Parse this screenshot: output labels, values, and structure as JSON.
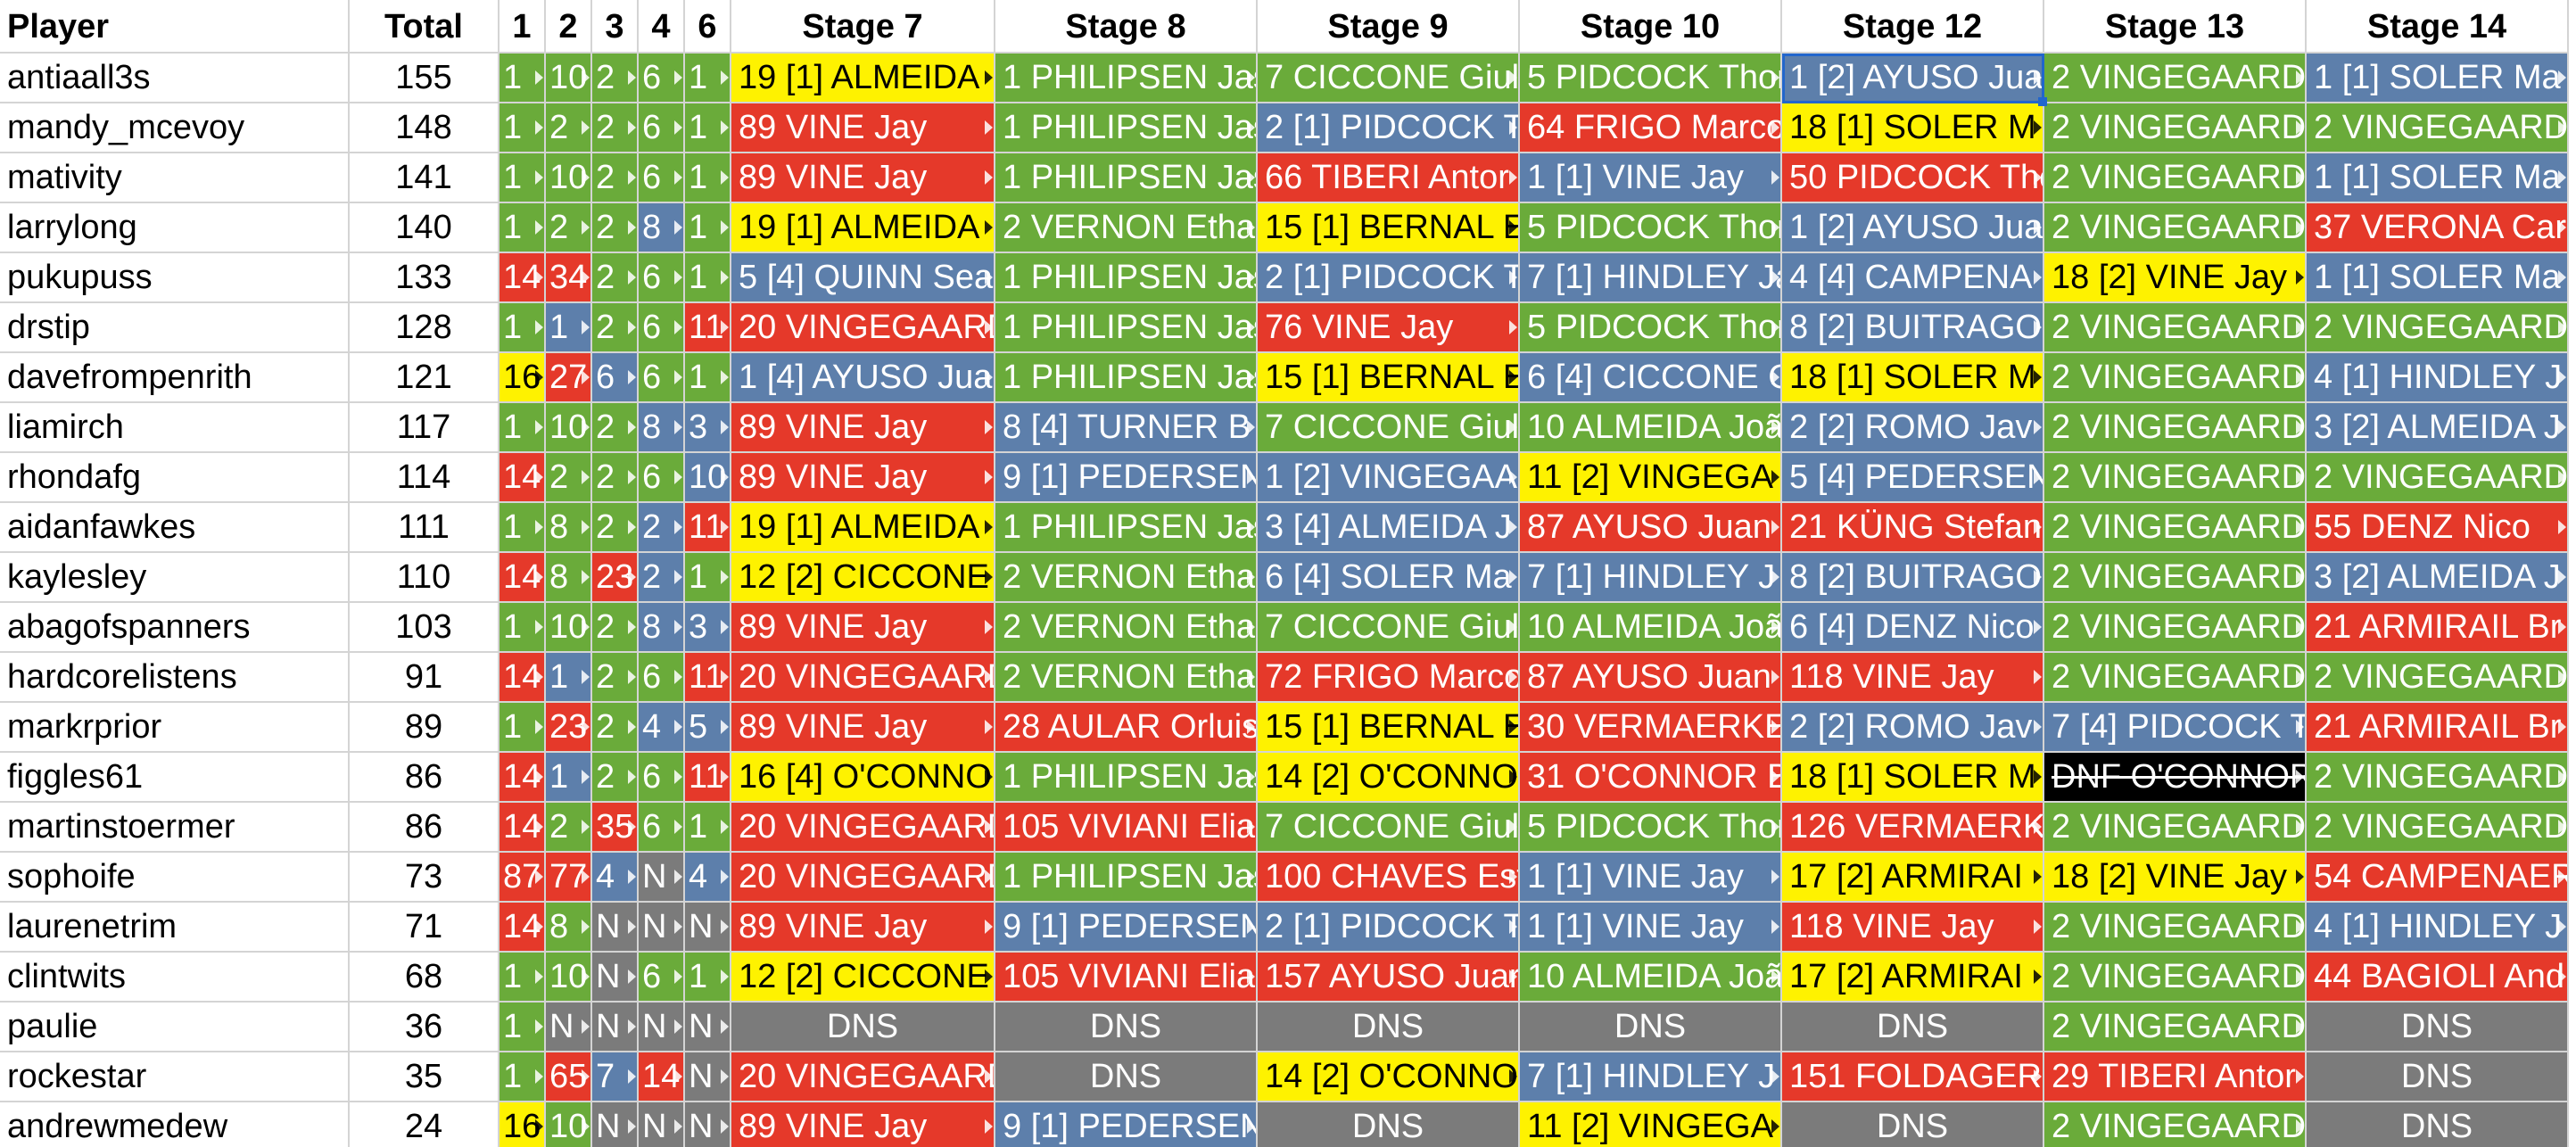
{
  "headers": [
    "Player",
    "Total",
    "1",
    "2",
    "3",
    "4",
    "6",
    "Stage 7",
    "Stage 8",
    "Stage 9",
    "Stage 10",
    "Stage 12",
    "Stage 13",
    "Stage 14"
  ],
  "colors": {
    "G": "#6aab3a",
    "R": "#e5392a",
    "B": "#5d7fab",
    "Y": "#fef200",
    "D": "#7b7b7b",
    "K": "#000000"
  },
  "selected_cell": {
    "row": 0,
    "column": "Stage 12"
  },
  "rows": [
    {
      "player": "antiaall3s",
      "total": "155",
      "cells": [
        [
          "G",
          "1"
        ],
        [
          "G",
          "10"
        ],
        [
          "G",
          "2"
        ],
        [
          "G",
          "6"
        ],
        [
          "G",
          "1"
        ],
        [
          "Y",
          "19 [1] ALMEIDA"
        ],
        [
          "G",
          "1 PHILIPSEN Jas"
        ],
        [
          "G",
          "7 CICCONE Giuli"
        ],
        [
          "G",
          "5 PIDCOCK Thor"
        ],
        [
          "B",
          "1 [2] AYUSO Jua"
        ],
        [
          "G",
          "2 VINGEGAARD"
        ],
        [
          "B",
          "1 [1] SOLER Ma"
        ]
      ]
    },
    {
      "player": "mandy_mcevoy",
      "total": "148",
      "cells": [
        [
          "G",
          "1"
        ],
        [
          "G",
          "2"
        ],
        [
          "G",
          "2"
        ],
        [
          "G",
          "6"
        ],
        [
          "G",
          "1"
        ],
        [
          "R",
          "89 VINE Jay"
        ],
        [
          "G",
          "1 PHILIPSEN Jas"
        ],
        [
          "B",
          "2 [1] PIDCOCK T"
        ],
        [
          "R",
          "64 FRIGO Marco"
        ],
        [
          "Y",
          "18 [1] SOLER M"
        ],
        [
          "G",
          "2 VINGEGAARD"
        ],
        [
          "G",
          "2 VINGEGAARD"
        ]
      ]
    },
    {
      "player": "mativity",
      "total": "141",
      "cells": [
        [
          "G",
          "1"
        ],
        [
          "G",
          "10"
        ],
        [
          "G",
          "2"
        ],
        [
          "G",
          "6"
        ],
        [
          "G",
          "1"
        ],
        [
          "R",
          "89 VINE Jay"
        ],
        [
          "G",
          "1 PHILIPSEN Jas"
        ],
        [
          "R",
          "66 TIBERI Antor"
        ],
        [
          "B",
          "1 [1] VINE Jay"
        ],
        [
          "R",
          "50 PIDCOCK Tho"
        ],
        [
          "G",
          "2 VINGEGAARD"
        ],
        [
          "B",
          "1 [1] SOLER Ma"
        ]
      ]
    },
    {
      "player": "larrylong",
      "total": "140",
      "cells": [
        [
          "G",
          "1"
        ],
        [
          "G",
          "2"
        ],
        [
          "G",
          "2"
        ],
        [
          "B",
          "8"
        ],
        [
          "G",
          "1"
        ],
        [
          "Y",
          "19 [1] ALMEIDA"
        ],
        [
          "G",
          "2 VERNON Etha"
        ],
        [
          "Y",
          "15 [1] BERNAL E"
        ],
        [
          "G",
          "5 PIDCOCK Thor"
        ],
        [
          "B",
          "1 [2] AYUSO Jua"
        ],
        [
          "G",
          "2 VINGEGAARD"
        ],
        [
          "R",
          "37 VERONA Car"
        ]
      ]
    },
    {
      "player": "pukupuss",
      "total": "133",
      "cells": [
        [
          "R",
          "14"
        ],
        [
          "R",
          "34"
        ],
        [
          "G",
          "2"
        ],
        [
          "G",
          "6"
        ],
        [
          "G",
          "1"
        ],
        [
          "B",
          "5 [4] QUINN Sea"
        ],
        [
          "G",
          "1 PHILIPSEN Jas"
        ],
        [
          "B",
          "2 [1] PIDCOCK T"
        ],
        [
          "B",
          "7 [1] HINDLEY Ja"
        ],
        [
          "B",
          "4 [4] CAMPENA"
        ],
        [
          "Y",
          "18 [2] VINE Jay"
        ],
        [
          "B",
          "1 [1] SOLER Ma"
        ]
      ]
    },
    {
      "player": "drstip",
      "total": "128",
      "cells": [
        [
          "G",
          "1"
        ],
        [
          "B",
          "1"
        ],
        [
          "G",
          "2"
        ],
        [
          "G",
          "6"
        ],
        [
          "R",
          "11"
        ],
        [
          "R",
          "20 VINGEGAARD"
        ],
        [
          "G",
          "1 PHILIPSEN Jas"
        ],
        [
          "R",
          "76 VINE Jay"
        ],
        [
          "G",
          "5 PIDCOCK Thor"
        ],
        [
          "B",
          "8 [2] BUITRAGO"
        ],
        [
          "G",
          "2 VINGEGAARD"
        ],
        [
          "G",
          "2 VINGEGAARD"
        ]
      ]
    },
    {
      "player": "davefrompenrith",
      "total": "121",
      "cells": [
        [
          "Y",
          "16"
        ],
        [
          "R",
          "27"
        ],
        [
          "B",
          "6"
        ],
        [
          "G",
          "6"
        ],
        [
          "G",
          "1"
        ],
        [
          "B",
          "1 [4] AYUSO Jua"
        ],
        [
          "G",
          "1 PHILIPSEN Jas"
        ],
        [
          "Y",
          "15 [1] BERNAL E"
        ],
        [
          "B",
          "6 [4] CICCONE G"
        ],
        [
          "Y",
          "18 [1] SOLER M"
        ],
        [
          "G",
          "2 VINGEGAARD"
        ],
        [
          "B",
          "4 [1] HINDLEY J"
        ]
      ]
    },
    {
      "player": "liamirch",
      "total": "117",
      "cells": [
        [
          "G",
          "1"
        ],
        [
          "G",
          "10"
        ],
        [
          "G",
          "2"
        ],
        [
          "B",
          "8"
        ],
        [
          "B",
          "3"
        ],
        [
          "R",
          "89 VINE Jay"
        ],
        [
          "B",
          "8 [4] TURNER B"
        ],
        [
          "G",
          "7 CICCONE Giuli"
        ],
        [
          "G",
          "10 ALMEIDA Joã"
        ],
        [
          "B",
          "2 [2] ROMO Jav"
        ],
        [
          "G",
          "2 VINGEGAARD"
        ],
        [
          "B",
          "3 [2] ALMEIDA J"
        ]
      ]
    },
    {
      "player": "rhondafg",
      "total": "114",
      "cells": [
        [
          "R",
          "14"
        ],
        [
          "G",
          "2"
        ],
        [
          "G",
          "2"
        ],
        [
          "G",
          "6"
        ],
        [
          "B",
          "10"
        ],
        [
          "R",
          "89 VINE Jay"
        ],
        [
          "B",
          "9 [1] PEDERSEN"
        ],
        [
          "B",
          "1 [2] VINGEGAA"
        ],
        [
          "Y",
          "11 [2] VINGEGA"
        ],
        [
          "B",
          "5 [4] PEDERSEN"
        ],
        [
          "G",
          "2 VINGEGAARD"
        ],
        [
          "G",
          "2 VINGEGAARD"
        ]
      ]
    },
    {
      "player": "aidanfawkes",
      "total": "111",
      "cells": [
        [
          "G",
          "1"
        ],
        [
          "G",
          "8"
        ],
        [
          "G",
          "2"
        ],
        [
          "B",
          "2"
        ],
        [
          "R",
          "11"
        ],
        [
          "Y",
          "19 [1] ALMEIDA"
        ],
        [
          "G",
          "1 PHILIPSEN Jas"
        ],
        [
          "B",
          "3 [4] ALMEIDA J"
        ],
        [
          "R",
          "87 AYUSO Juan"
        ],
        [
          "R",
          "21 KÜNG Stefan"
        ],
        [
          "G",
          "2 VINGEGAARD"
        ],
        [
          "R",
          "55 DENZ Nico"
        ]
      ]
    },
    {
      "player": "kaylesley",
      "total": "110",
      "cells": [
        [
          "R",
          "14"
        ],
        [
          "G",
          "8"
        ],
        [
          "R",
          "23"
        ],
        [
          "B",
          "2"
        ],
        [
          "G",
          "1"
        ],
        [
          "Y",
          "12 [2] CICCONE"
        ],
        [
          "G",
          "2 VERNON Etha"
        ],
        [
          "B",
          "6 [4] SOLER Ma"
        ],
        [
          "B",
          "7 [1] HINDLEY J"
        ],
        [
          "B",
          "8 [2] BUITRAGO"
        ],
        [
          "G",
          "2 VINGEGAARD"
        ],
        [
          "B",
          "3 [2] ALMEIDA J"
        ]
      ]
    },
    {
      "player": "abagofspanners",
      "total": "103",
      "cells": [
        [
          "G",
          "1"
        ],
        [
          "G",
          "10"
        ],
        [
          "G",
          "2"
        ],
        [
          "B",
          "8"
        ],
        [
          "B",
          "3"
        ],
        [
          "R",
          "89 VINE Jay"
        ],
        [
          "G",
          "2 VERNON Etha"
        ],
        [
          "G",
          "7 CICCONE Giuli"
        ],
        [
          "G",
          "10 ALMEIDA Joã"
        ],
        [
          "B",
          "6 [4] DENZ Nico"
        ],
        [
          "G",
          "2 VINGEGAARD"
        ],
        [
          "R",
          "21 ARMIRAIL Br"
        ]
      ]
    },
    {
      "player": "hardcorelistens",
      "total": "91",
      "cells": [
        [
          "R",
          "14"
        ],
        [
          "B",
          "1"
        ],
        [
          "G",
          "2"
        ],
        [
          "G",
          "6"
        ],
        [
          "R",
          "11"
        ],
        [
          "R",
          "20 VINGEGAARD"
        ],
        [
          "G",
          "2 VERNON Etha"
        ],
        [
          "R",
          "72 FRIGO Marco"
        ],
        [
          "R",
          "87 AYUSO Juan"
        ],
        [
          "R",
          "118 VINE Jay"
        ],
        [
          "G",
          "2 VINGEGAARD"
        ],
        [
          "G",
          "2 VINGEGAARD"
        ]
      ]
    },
    {
      "player": "markrprior",
      "total": "89",
      "cells": [
        [
          "G",
          "1"
        ],
        [
          "R",
          "23"
        ],
        [
          "G",
          "2"
        ],
        [
          "B",
          "4"
        ],
        [
          "B",
          "5"
        ],
        [
          "R",
          "89 VINE Jay"
        ],
        [
          "R",
          "28 AULAR Orluis"
        ],
        [
          "Y",
          "15 [1] BERNAL E"
        ],
        [
          "R",
          "30 VERMAERKE"
        ],
        [
          "B",
          "2 [2] ROMO Jav"
        ],
        [
          "B",
          "7 [4] PIDCOCK T"
        ],
        [
          "R",
          "21 ARMIRAIL Br"
        ]
      ]
    },
    {
      "player": "figgles61",
      "total": "86",
      "cells": [
        [
          "R",
          "14"
        ],
        [
          "B",
          "1"
        ],
        [
          "G",
          "2"
        ],
        [
          "G",
          "6"
        ],
        [
          "R",
          "11"
        ],
        [
          "Y",
          "16 [4] O'CONNO"
        ],
        [
          "G",
          "1 PHILIPSEN Jas"
        ],
        [
          "Y",
          "14 [2] O'CONNO"
        ],
        [
          "R",
          "31 O'CONNOR B"
        ],
        [
          "Y",
          "18 [1] SOLER M"
        ],
        [
          "K",
          "DNF O'CONNOR"
        ],
        [
          "G",
          "2 VINGEGAARD"
        ]
      ]
    },
    {
      "player": "martinstoermer",
      "total": "86",
      "cells": [
        [
          "R",
          "14"
        ],
        [
          "G",
          "2"
        ],
        [
          "R",
          "35"
        ],
        [
          "G",
          "6"
        ],
        [
          "G",
          "1"
        ],
        [
          "R",
          "20 VINGEGAARD"
        ],
        [
          "R",
          "105 VIVIANI Elia"
        ],
        [
          "G",
          "7 CICCONE Giuli"
        ],
        [
          "G",
          "5 PIDCOCK Thor"
        ],
        [
          "R",
          "126 VERMAERK"
        ],
        [
          "G",
          "2 VINGEGAARD"
        ],
        [
          "G",
          "2 VINGEGAARD"
        ]
      ]
    },
    {
      "player": "sophoife",
      "total": "73",
      "cells": [
        [
          "R",
          "87"
        ],
        [
          "R",
          "77"
        ],
        [
          "B",
          "4"
        ],
        [
          "D",
          "N"
        ],
        [
          "B",
          "4"
        ],
        [
          "R",
          "20 VINGEGAARD"
        ],
        [
          "G",
          "1 PHILIPSEN Jas"
        ],
        [
          "R",
          "100 CHAVES Est"
        ],
        [
          "B",
          "1 [1] VINE Jay"
        ],
        [
          "Y",
          "17 [2] ARMIRAI"
        ],
        [
          "Y",
          "18 [2] VINE Jay"
        ],
        [
          "R",
          "54 CAMPENAER"
        ]
      ]
    },
    {
      "player": "laurenetrim",
      "total": "71",
      "cells": [
        [
          "R",
          "14"
        ],
        [
          "G",
          "8"
        ],
        [
          "D",
          "N"
        ],
        [
          "D",
          "N"
        ],
        [
          "D",
          "N"
        ],
        [
          "R",
          "89 VINE Jay"
        ],
        [
          "B",
          "9 [1] PEDERSEN"
        ],
        [
          "B",
          "2 [1] PIDCOCK T"
        ],
        [
          "B",
          "1 [1] VINE Jay"
        ],
        [
          "R",
          "118 VINE Jay"
        ],
        [
          "G",
          "2 VINGEGAARD"
        ],
        [
          "B",
          "4 [1] HINDLEY J"
        ]
      ]
    },
    {
      "player": "clintwits",
      "total": "68",
      "cells": [
        [
          "G",
          "1"
        ],
        [
          "G",
          "10"
        ],
        [
          "D",
          "N"
        ],
        [
          "G",
          "6"
        ],
        [
          "G",
          "1"
        ],
        [
          "Y",
          "12 [2] CICCONE"
        ],
        [
          "R",
          "105 VIVIANI Elia"
        ],
        [
          "R",
          "157 AYUSO Juar"
        ],
        [
          "G",
          "10 ALMEIDA Joã"
        ],
        [
          "Y",
          "17 [2] ARMIRAI"
        ],
        [
          "G",
          "2 VINGEGAARD"
        ],
        [
          "R",
          "44 BAGIOLI And"
        ]
      ]
    },
    {
      "player": "paulie",
      "total": "36",
      "cells": [
        [
          "G",
          "1"
        ],
        [
          "D",
          "N"
        ],
        [
          "D",
          "N"
        ],
        [
          "D",
          "N"
        ],
        [
          "D",
          "N"
        ],
        [
          "D",
          "DNS"
        ],
        [
          "D",
          "DNS"
        ],
        [
          "D",
          "DNS"
        ],
        [
          "D",
          "DNS"
        ],
        [
          "D",
          "DNS"
        ],
        [
          "G",
          "2 VINGEGAARD"
        ],
        [
          "D",
          "DNS"
        ]
      ]
    },
    {
      "player": "rockestar",
      "total": "35",
      "cells": [
        [
          "G",
          "1"
        ],
        [
          "R",
          "65"
        ],
        [
          "B",
          "7"
        ],
        [
          "R",
          "14"
        ],
        [
          "D",
          "N"
        ],
        [
          "R",
          "20 VINGEGAARD"
        ],
        [
          "D",
          "DNS"
        ],
        [
          "Y",
          "14 [2] O'CONNO"
        ],
        [
          "B",
          "7 [1] HINDLEY J"
        ],
        [
          "R",
          "151 FOLDAGER"
        ],
        [
          "R",
          "29 TIBERI Antor"
        ],
        [
          "D",
          "DNS"
        ]
      ]
    },
    {
      "player": "andrewmedew",
      "total": "24",
      "cells": [
        [
          "Y",
          "16"
        ],
        [
          "G",
          "10"
        ],
        [
          "D",
          "N"
        ],
        [
          "D",
          "N"
        ],
        [
          "D",
          "N"
        ],
        [
          "R",
          "89 VINE Jay"
        ],
        [
          "B",
          "9 [1] PEDERSEN"
        ],
        [
          "D",
          "DNS"
        ],
        [
          "Y",
          "11 [2] VINGEGA"
        ],
        [
          "D",
          "DNS"
        ],
        [
          "G",
          "2 VINGEGAARD"
        ],
        [
          "D",
          "DNS"
        ]
      ]
    }
  ]
}
